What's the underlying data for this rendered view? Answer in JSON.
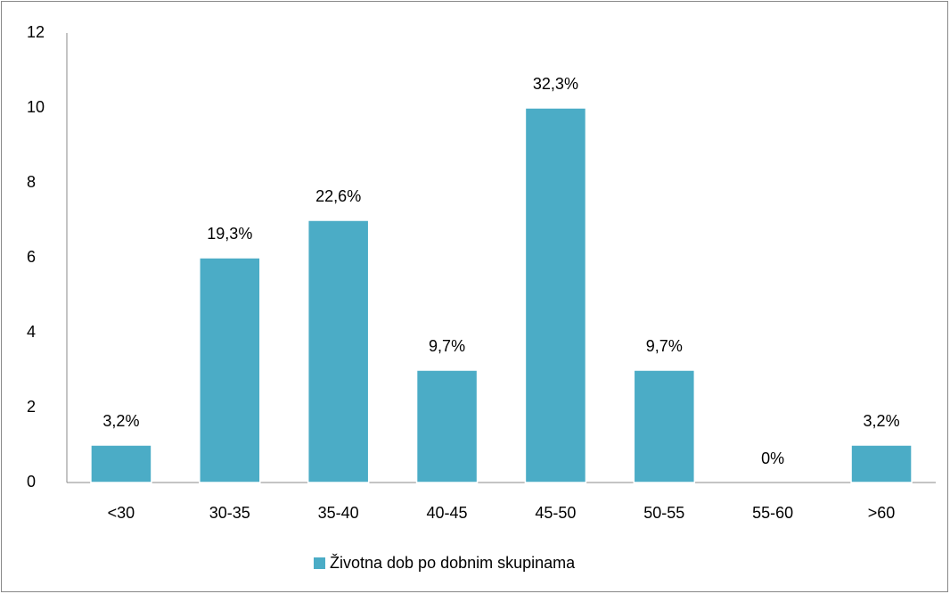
{
  "chart_data": {
    "type": "bar",
    "categories": [
      "<30",
      "30-35",
      "35-40",
      "40-45",
      "45-50",
      "50-55",
      "55-60",
      ">60"
    ],
    "series": [
      {
        "name": "Životna dob po dobnim skupinama",
        "color": "#4bacc6",
        "values": [
          1,
          6,
          7,
          3,
          10,
          3,
          0,
          1
        ],
        "value_labels": [
          "3,2%",
          "19,3%",
          "22,6%",
          "9,7%",
          "32,3%",
          "9,7%",
          "0%",
          "3,2%"
        ]
      }
    ],
    "ylim": [
      0,
      12
    ],
    "yticks": [
      0,
      2,
      4,
      6,
      8,
      10,
      12
    ],
    "grid": false,
    "legend": "bottom"
  }
}
